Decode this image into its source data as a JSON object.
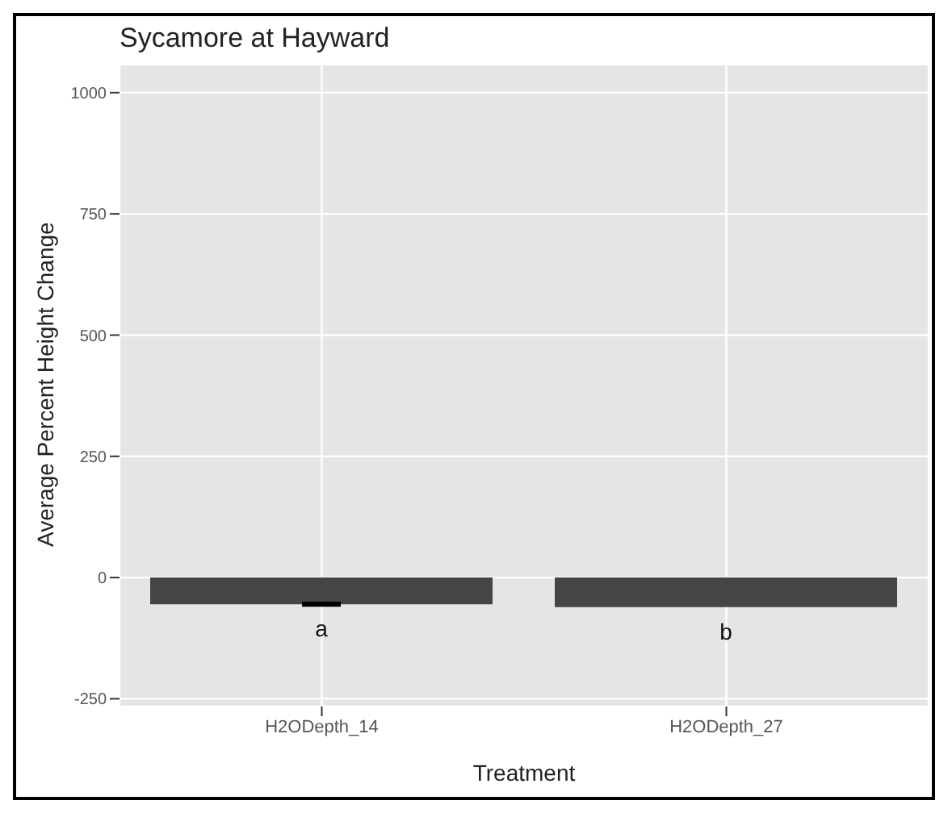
{
  "chart_data": {
    "type": "bar",
    "title": "Sycamore at Hayward",
    "xlabel": "Treatment",
    "ylabel": "Average Percent Height Change",
    "categories": [
      "H2ODepth_14",
      "H2ODepth_27"
    ],
    "values": [
      -55,
      -61
    ],
    "errors": [
      2,
      null
    ],
    "color": "#454545",
    "ylim": [
      -266,
      1058
    ],
    "yticks": [
      -250,
      0,
      250,
      500,
      750,
      1000
    ],
    "grid": true,
    "annotations": [
      "a",
      "b"
    ]
  }
}
